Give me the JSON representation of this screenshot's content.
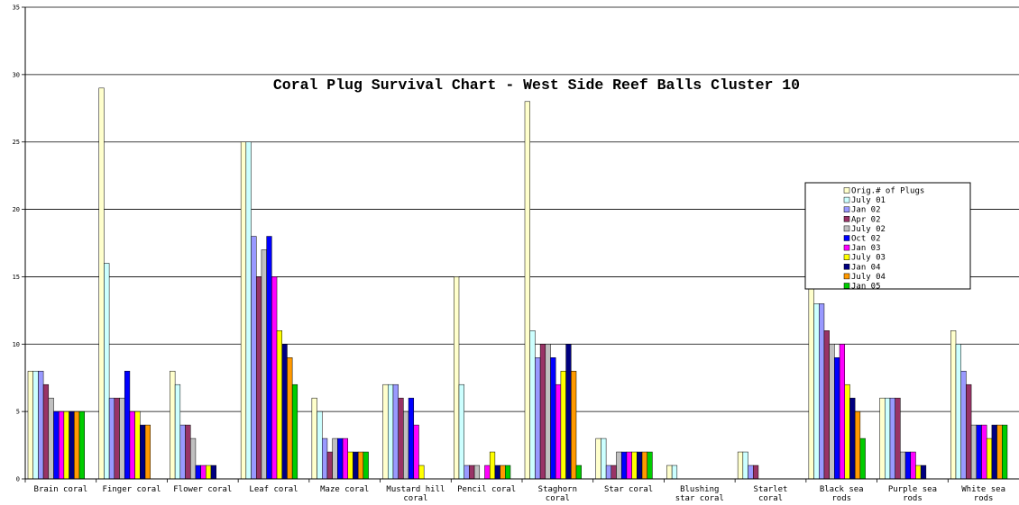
{
  "chart_data": {
    "type": "bar",
    "title": "Coral Plug Survival Chart - West Side Reef Balls Cluster 10",
    "xlabel": "",
    "ylabel": "",
    "ylim": [
      0,
      35
    ],
    "yticks": [
      0,
      5,
      10,
      15,
      20,
      25,
      30,
      35
    ],
    "grid": "horizontal",
    "legend_position": "right",
    "categories": [
      [
        "Brain coral"
      ],
      [
        "Finger coral"
      ],
      [
        "Flower coral"
      ],
      [
        "Leaf coral"
      ],
      [
        "Maze coral"
      ],
      [
        "Mustard hill",
        "coral"
      ],
      [
        "Pencil coral"
      ],
      [
        "Staghorn",
        "coral"
      ],
      [
        "Star coral"
      ],
      [
        "Blushing",
        "star coral"
      ],
      [
        "Starlet",
        "coral"
      ],
      [
        "Black sea",
        "rods"
      ],
      [
        "Purple sea",
        "rods"
      ],
      [
        "White sea",
        "rods"
      ]
    ],
    "series": [
      {
        "name": "Orig.# of Plugs",
        "color": "#FFFFCC",
        "values": [
          8,
          29,
          8,
          25,
          6,
          7,
          15,
          28,
          3,
          1,
          2,
          15,
          6,
          11
        ]
      },
      {
        "name": "July 01",
        "color": "#CCFFFF",
        "values": [
          8,
          16,
          7,
          25,
          5,
          7,
          7,
          11,
          3,
          1,
          2,
          13,
          6,
          10
        ]
      },
      {
        "name": "Jan 02",
        "color": "#9999FF",
        "values": [
          8,
          6,
          4,
          18,
          3,
          7,
          1,
          9,
          1,
          0,
          1,
          13,
          6,
          8
        ]
      },
      {
        "name": "Apr 02",
        "color": "#993366",
        "values": [
          7,
          6,
          4,
          15,
          2,
          6,
          1,
          10,
          1,
          0,
          1,
          11,
          6,
          7
        ]
      },
      {
        "name": "July 02",
        "color": "#C0C0C0",
        "values": [
          6,
          6,
          3,
          17,
          3,
          5,
          1,
          10,
          2,
          0,
          0,
          10,
          2,
          4
        ]
      },
      {
        "name": "Oct 02",
        "color": "#0000FF",
        "values": [
          5,
          8,
          1,
          18,
          3,
          6,
          0,
          9,
          2,
          0,
          0,
          9,
          2,
          4
        ]
      },
      {
        "name": "Jan 03",
        "color": "#FF00FF",
        "values": [
          5,
          5,
          1,
          15,
          3,
          4,
          1,
          7,
          2,
          0,
          0,
          10,
          2,
          4
        ]
      },
      {
        "name": "July 03",
        "color": "#FFFF00",
        "values": [
          5,
          5,
          1,
          11,
          2,
          1,
          2,
          8,
          2,
          0,
          0,
          7,
          1,
          3
        ]
      },
      {
        "name": "Jan 04",
        "color": "#000080",
        "values": [
          5,
          4,
          1,
          10,
          2,
          0,
          1,
          10,
          2,
          0,
          0,
          6,
          1,
          4
        ]
      },
      {
        "name": "July 04",
        "color": "#FF9900",
        "values": [
          5,
          4,
          0,
          9,
          2,
          0,
          1,
          8,
          2,
          0,
          0,
          5,
          0,
          4
        ]
      },
      {
        "name": "Jan 05",
        "color": "#00CC00",
        "values": [
          5,
          0,
          0,
          7,
          2,
          0,
          1,
          1,
          2,
          0,
          0,
          3,
          0,
          4
        ]
      }
    ]
  }
}
